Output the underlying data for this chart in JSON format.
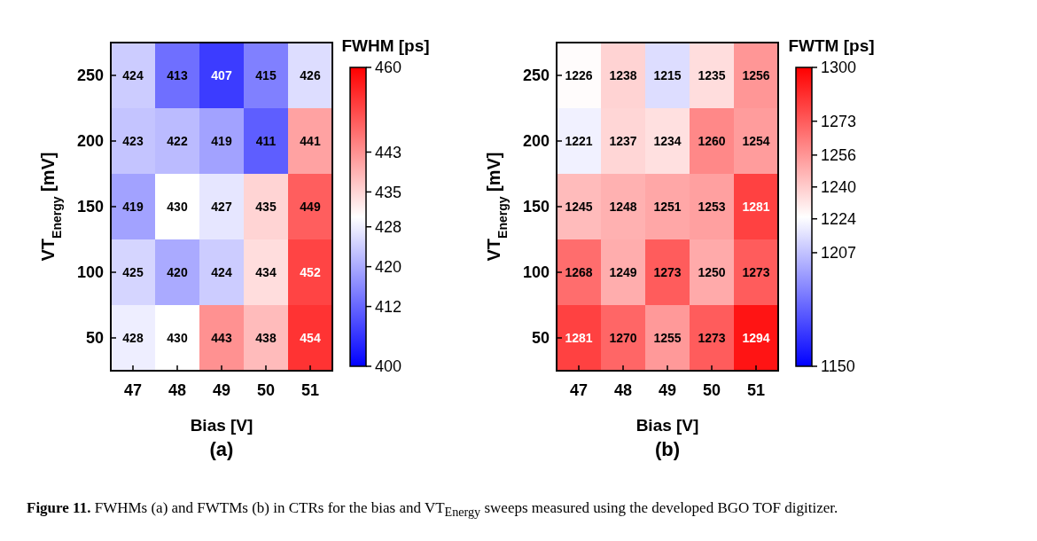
{
  "chart_data": [
    {
      "type": "heatmap",
      "xlabel": "Bias [V]",
      "ylabel": "VT$_{Energy}$ [mV]",
      "clabel": "FWHM [ps]",
      "categories": [
        "47",
        "48",
        "49",
        "50",
        "51"
      ],
      "y_categories": [
        "250",
        "200",
        "150",
        "100",
        "50"
      ],
      "cells": [
        [
          424,
          413,
          407,
          415,
          426
        ],
        [
          423,
          422,
          419,
          411,
          441
        ],
        [
          419,
          430,
          427,
          435,
          449
        ],
        [
          425,
          420,
          424,
          434,
          452
        ],
        [
          428,
          430,
          443,
          438,
          454
        ]
      ],
      "clim": [
        400,
        460
      ],
      "cticks": [
        400,
        412,
        420,
        428,
        435,
        443,
        460
      ],
      "data_labels": true,
      "annotations": [
        "(a)",
        "Figure 11. FWHMs (a) and FWTMs (b) in CTRs for the bias and VT$_{Energy}$ sweeps measured using the developed BGO TOF digitizer."
      ]
    },
    {
      "type": "heatmap",
      "xlabel": "Bias [V]",
      "ylabel": "VT$_{Energy}$ [mV]",
      "clabel": "FWTM [ps]",
      "categories": [
        "47",
        "48",
        "49",
        "50",
        "51"
      ],
      "y_categories": [
        "250",
        "200",
        "150",
        "100",
        "50"
      ],
      "cells": [
        [
          1226,
          1238,
          1215,
          1235,
          1256
        ],
        [
          1221,
          1237,
          1234,
          1260,
          1254
        ],
        [
          1245,
          1248,
          1251,
          1253,
          1281
        ],
        [
          1268,
          1249,
          1273,
          1250,
          1273
        ],
        [
          1281,
          1270,
          1255,
          1273,
          1294
        ]
      ],
      "clim": [
        1150,
        1300
      ],
      "cticks": [
        1150,
        1207,
        1224,
        1240,
        1256,
        1273,
        1300
      ],
      "data_labels": true,
      "annotations": [
        "(b)"
      ]
    }
  ]
}
